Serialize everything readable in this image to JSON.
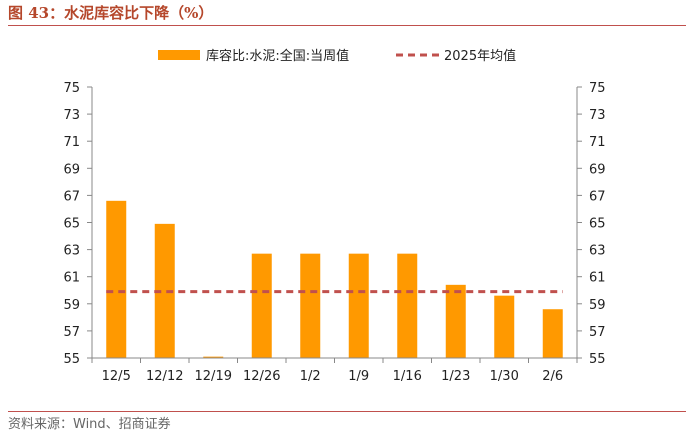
{
  "figure": {
    "title": "图 43：水泥库容比下降（%）",
    "source": "资料来源：Wind、招商证券"
  },
  "colors": {
    "bar": "#FF9900",
    "avg_line": "#C0504D",
    "title": "#B5472B",
    "axis": "#888888"
  },
  "chart_data": {
    "type": "bar",
    "categories": [
      "12/5",
      "12/12",
      "12/19",
      "12/26",
      "1/2",
      "1/9",
      "1/16",
      "1/23",
      "1/30",
      "2/6"
    ],
    "series": [
      {
        "name": "库容比:水泥:全国:当周值",
        "type": "bar",
        "values": [
          66.6,
          64.9,
          55.1,
          62.7,
          62.7,
          62.7,
          62.7,
          60.4,
          59.6,
          58.6
        ]
      },
      {
        "name": "2025年均值",
        "type": "line",
        "style": "dashed",
        "values": [
          59.9,
          59.9,
          59.9,
          59.9,
          59.9,
          59.9,
          59.9,
          59.9,
          59.9,
          59.9
        ]
      }
    ],
    "y_ticks": [
      55,
      57,
      59,
      61,
      63,
      65,
      67,
      69,
      71,
      73,
      75
    ],
    "ylim": [
      55,
      75
    ],
    "y_axes": "left and right (identical scale)",
    "grid": false,
    "legend": "top-center"
  }
}
